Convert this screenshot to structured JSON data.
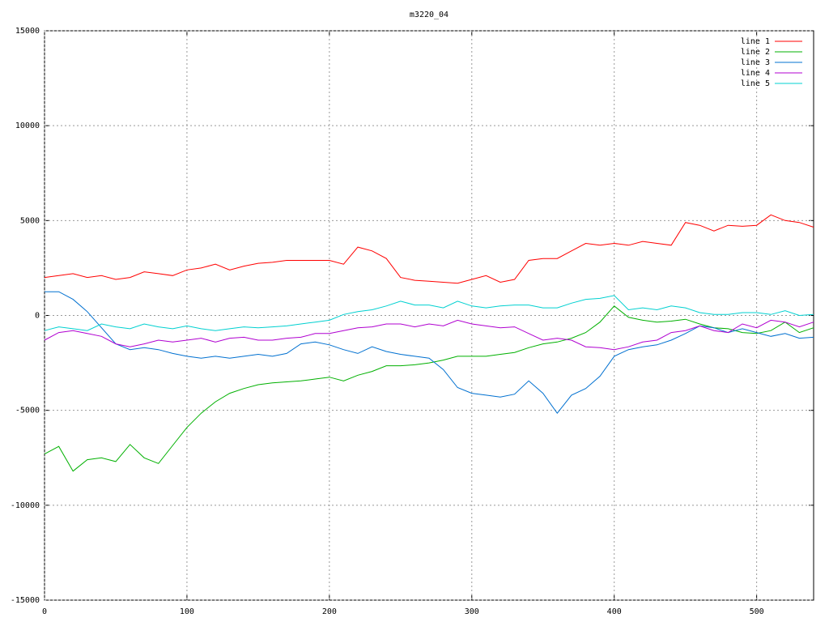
{
  "chart_data": {
    "type": "line",
    "title": "m3220_04",
    "x": [
      0,
      10,
      20,
      30,
      40,
      50,
      60,
      70,
      80,
      90,
      100,
      110,
      120,
      130,
      140,
      150,
      160,
      170,
      180,
      190,
      200,
      210,
      220,
      230,
      240,
      250,
      260,
      270,
      280,
      290,
      300,
      310,
      320,
      330,
      340,
      350,
      360,
      370,
      380,
      390,
      400,
      410,
      420,
      430,
      440,
      450,
      460,
      470,
      480,
      490,
      500,
      510,
      520,
      530,
      540
    ],
    "series": [
      {
        "name": "line 1",
        "color": "#ff0000",
        "values": [
          2000,
          2100,
          2200,
          2000,
          2100,
          1900,
          2000,
          2300,
          2200,
          2100,
          2400,
          2500,
          2700,
          2400,
          2600,
          2750,
          2800,
          2900,
          2900,
          2900,
          2900,
          2700,
          3600,
          3400,
          3000,
          2000,
          1850,
          1800,
          1750,
          1700,
          1900,
          2100,
          1750,
          1900,
          2900,
          3000,
          3000,
          3400,
          3800,
          3700,
          3800,
          3700,
          3900,
          3800,
          3700,
          4900,
          4750,
          4450,
          4750,
          4700,
          4750,
          5300,
          5000,
          4900,
          4650
        ]
      },
      {
        "name": "line 2",
        "color": "#00b000",
        "values": [
          -7300,
          -6900,
          -8200,
          -7600,
          -7500,
          -7700,
          -6800,
          -7500,
          -7800,
          -6850,
          -5900,
          -5150,
          -4550,
          -4100,
          -3850,
          -3650,
          -3550,
          -3500,
          -3450,
          -3350,
          -3250,
          -3450,
          -3150,
          -2950,
          -2650,
          -2650,
          -2600,
          -2500,
          -2350,
          -2150,
          -2150,
          -2150,
          -2050,
          -1950,
          -1700,
          -1500,
          -1400,
          -1200,
          -900,
          -350,
          500,
          -100,
          -250,
          -350,
          -300,
          -200,
          -450,
          -650,
          -700,
          -900,
          -950,
          -800,
          -350,
          -900,
          -650
        ]
      },
      {
        "name": "line 3",
        "color": "#0070d0",
        "values": [
          1250,
          1250,
          850,
          200,
          -650,
          -1500,
          -1800,
          -1700,
          -1800,
          -2000,
          -2150,
          -2250,
          -2150,
          -2250,
          -2150,
          -2050,
          -2150,
          -2000,
          -1500,
          -1400,
          -1550,
          -1800,
          -2000,
          -1650,
          -1900,
          -2050,
          -2150,
          -2250,
          -2850,
          -3800,
          -4100,
          -4200,
          -4300,
          -4150,
          -3450,
          -4100,
          -5150,
          -4200,
          -3850,
          -3200,
          -2150,
          -1800,
          -1650,
          -1550,
          -1300,
          -950,
          -550,
          -650,
          -900,
          -700,
          -900,
          -1100,
          -950,
          -1200,
          -1150
        ]
      },
      {
        "name": "line 4",
        "color": "#b000d0",
        "values": [
          -1300,
          -900,
          -800,
          -950,
          -1100,
          -1500,
          -1650,
          -1500,
          -1300,
          -1400,
          -1300,
          -1200,
          -1400,
          -1200,
          -1150,
          -1300,
          -1300,
          -1200,
          -1150,
          -950,
          -950,
          -800,
          -650,
          -600,
          -450,
          -450,
          -600,
          -450,
          -550,
          -250,
          -450,
          -550,
          -650,
          -600,
          -950,
          -1300,
          -1200,
          -1300,
          -1650,
          -1700,
          -1800,
          -1650,
          -1400,
          -1300,
          -900,
          -800,
          -550,
          -800,
          -900,
          -450,
          -650,
          -250,
          -350,
          -600,
          -350
        ]
      },
      {
        "name": "line 5",
        "color": "#00d0d0",
        "values": [
          -800,
          -600,
          -700,
          -800,
          -450,
          -600,
          -700,
          -450,
          -600,
          -700,
          -550,
          -700,
          -800,
          -700,
          -600,
          -650,
          -600,
          -550,
          -450,
          -350,
          -250,
          50,
          200,
          300,
          500,
          750,
          550,
          550,
          400,
          750,
          500,
          400,
          500,
          550,
          550,
          400,
          400,
          650,
          850,
          900,
          1050,
          300,
          400,
          300,
          500,
          400,
          150,
          50,
          50,
          150,
          150,
          50,
          250,
          0,
          50
        ]
      }
    ],
    "xlim": [
      0,
      540
    ],
    "xticks": [
      0,
      100,
      200,
      300,
      400,
      500
    ],
    "ylim": [
      -15000,
      15000
    ],
    "yticks": [
      -15000,
      -10000,
      -5000,
      0,
      5000,
      10000,
      15000
    ],
    "grid": true,
    "legend": "top-right"
  }
}
